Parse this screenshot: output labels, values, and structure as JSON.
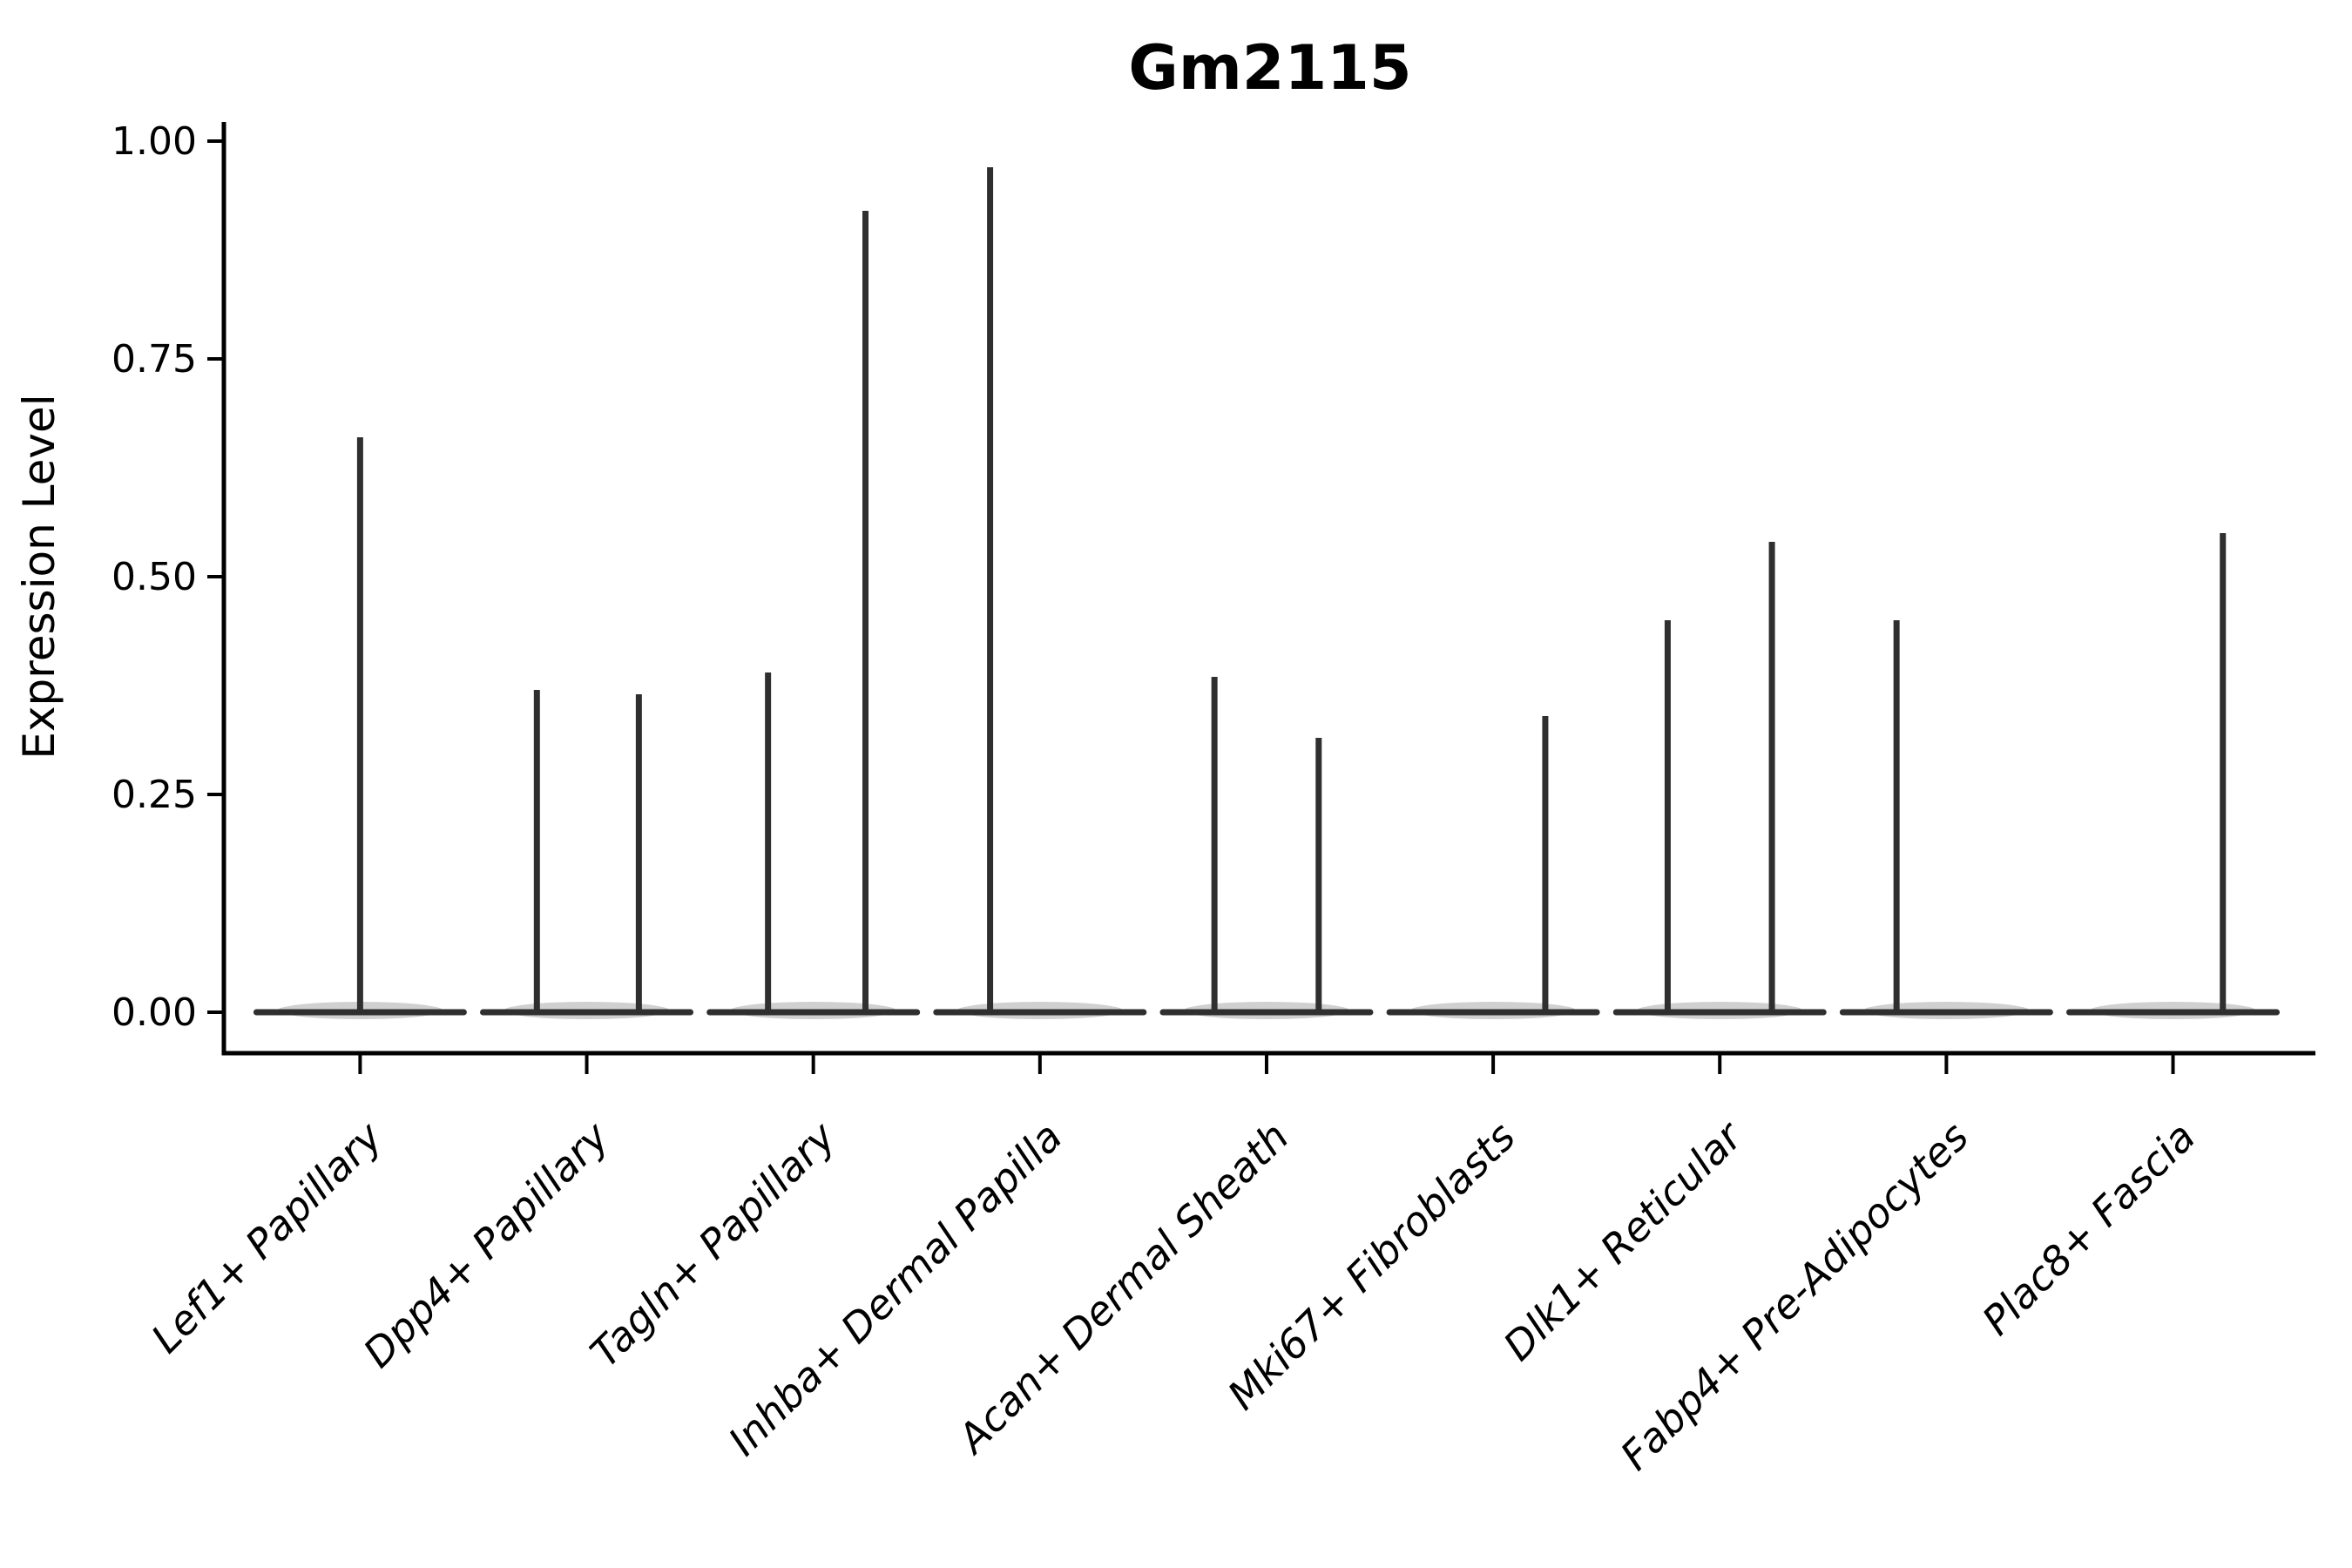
{
  "chart_data": {
    "type": "violin",
    "title": "Gm2115",
    "ylabel": "Expression Level",
    "xlabel": "",
    "ylim": [
      0,
      1.0
    ],
    "y_ticks": [
      0.0,
      0.25,
      0.5,
      0.75,
      1.0
    ],
    "y_tick_labels": [
      "0.00",
      "0.25",
      "0.50",
      "0.75",
      "1.00"
    ],
    "grid": false,
    "legend": "none",
    "x_label_rotation_deg": 45,
    "categories": [
      "Lef1+ Papillary",
      "Dpp4+ Papillary",
      "Tagln+ Papillary",
      "Inhba+ Dermal Papilla",
      "Acan+ Dermal Sheath",
      "Mki67+ Fibroblasts",
      "Dlk1+ Reticular",
      "Fabp4+ Pre-Adipocytes",
      "Plac8+ Fascia"
    ],
    "series": [
      {
        "name": "Lef1+ Papillary",
        "baseline_value": 0,
        "spikes": [
          {
            "offset": 0.0,
            "value": 0.66
          }
        ]
      },
      {
        "name": "Dpp4+ Papillary",
        "baseline_value": 0,
        "spikes": [
          {
            "offset": -0.22,
            "value": 0.37
          },
          {
            "offset": 0.23,
            "value": 0.365
          }
        ]
      },
      {
        "name": "Tagln+ Papillary",
        "baseline_value": 0,
        "spikes": [
          {
            "offset": -0.2,
            "value": 0.39
          },
          {
            "offset": 0.23,
            "value": 0.92
          }
        ]
      },
      {
        "name": "Inhba+ Dermal Papilla",
        "baseline_value": 0,
        "spikes": [
          {
            "offset": -0.22,
            "value": 0.97
          }
        ]
      },
      {
        "name": "Acan+ Dermal Sheath",
        "baseline_value": 0,
        "spikes": [
          {
            "offset": -0.23,
            "value": 0.385
          },
          {
            "offset": 0.23,
            "value": 0.315
          }
        ]
      },
      {
        "name": "Mki67+ Fibroblasts",
        "baseline_value": 0,
        "spikes": [
          {
            "offset": 0.23,
            "value": 0.34
          }
        ]
      },
      {
        "name": "Dlk1+ Reticular",
        "baseline_value": 0,
        "spikes": [
          {
            "offset": -0.23,
            "value": 0.45
          },
          {
            "offset": 0.23,
            "value": 0.54
          }
        ]
      },
      {
        "name": "Fabp4+ Pre-Adipocytes",
        "baseline_value": 0,
        "spikes": [
          {
            "offset": -0.22,
            "value": 0.45
          }
        ]
      },
      {
        "name": "Plac8+ Fascia",
        "baseline_value": 0,
        "spikes": [
          {
            "offset": 0.22,
            "value": 0.55
          }
        ]
      }
    ],
    "colors": {
      "violin_line": "#2f2f2f",
      "violin_fill": "#c4c4c4",
      "axis": "#000000",
      "text": "#000000",
      "background": "#ffffff"
    }
  }
}
